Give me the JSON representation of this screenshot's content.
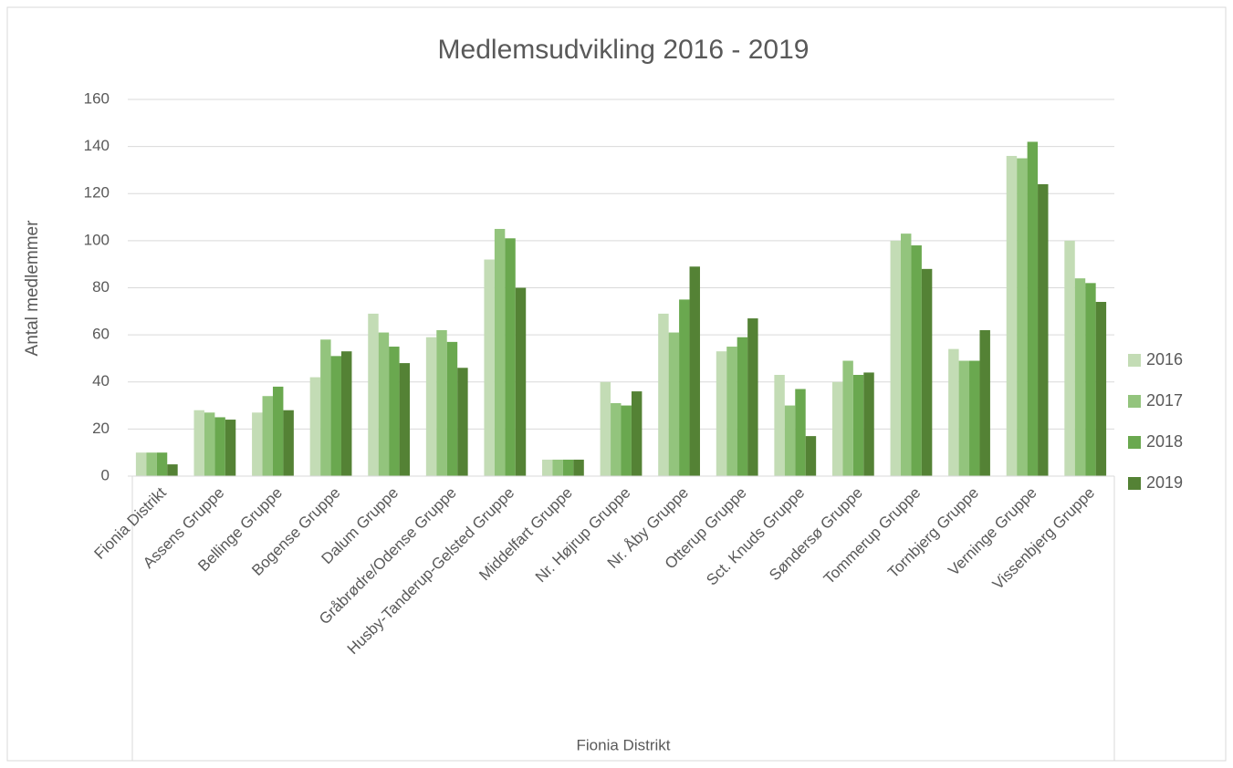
{
  "chart_data": {
    "type": "bar",
    "title": "Medlemsudvikling 2016 - 2019",
    "y_label": "Antal medlemmer",
    "x_label": "Fionia Distrikt",
    "categories": [
      "Fionia Distrikt",
      "Assens Gruppe",
      "Bellinge Gruppe",
      "Bogense Gruppe",
      "Dalum Gruppe",
      "Gråbrødre/Odense Gruppe",
      "Husby-Tanderup-Gelsted Gruppe",
      "Middelfart Gruppe",
      "Nr. Højrup Gruppe",
      "Nr. Åby Gruppe",
      "Otterup Gruppe",
      "Sct. Knuds Gruppe",
      "Søndersø Gruppe",
      "Tommerup Gruppe",
      "Tornbjerg Gruppe",
      "Verninge Gruppe",
      "Vissenbjerg Gruppe"
    ],
    "series": [
      {
        "name": "2016",
        "color": "#c3dcb5",
        "values": [
          10,
          28,
          27,
          42,
          69,
          59,
          92,
          7,
          40,
          69,
          53,
          43,
          40,
          100,
          54,
          136,
          100
        ]
      },
      {
        "name": "2017",
        "color": "#93c47d",
        "values": [
          10,
          27,
          34,
          58,
          61,
          62,
          105,
          7,
          31,
          61,
          55,
          30,
          49,
          103,
          49,
          135,
          84
        ]
      },
      {
        "name": "2018",
        "color": "#6aa84f",
        "values": [
          10,
          25,
          38,
          51,
          55,
          57,
          101,
          7,
          30,
          75,
          59,
          37,
          43,
          98,
          49,
          142,
          82
        ]
      },
      {
        "name": "2019",
        "color": "#548235",
        "values": [
          5,
          24,
          28,
          53,
          48,
          46,
          80,
          7,
          36,
          89,
          67,
          17,
          44,
          88,
          62,
          124,
          74
        ]
      }
    ],
    "ylim": [
      0,
      160
    ],
    "yticks": [
      0,
      20,
      40,
      60,
      80,
      100,
      120,
      140,
      160
    ],
    "grid": true,
    "legend": "right"
  }
}
